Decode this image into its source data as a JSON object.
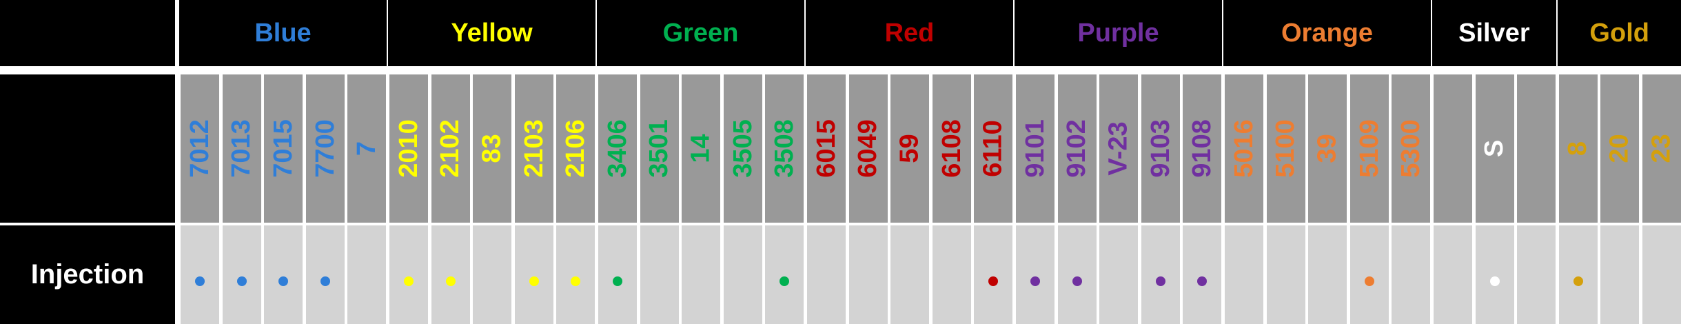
{
  "row_label": "Injection",
  "groups": [
    {
      "name": "Blue",
      "color": "#2f7ed8",
      "columns": [
        {
          "code": "7012",
          "injection": true
        },
        {
          "code": "7013",
          "injection": true
        },
        {
          "code": "7015",
          "injection": true
        },
        {
          "code": "7700",
          "injection": true
        },
        {
          "code": "7",
          "injection": false
        }
      ]
    },
    {
      "name": "Yellow",
      "color": "#ffff00",
      "columns": [
        {
          "code": "2010",
          "injection": true
        },
        {
          "code": "2102",
          "injection": true
        },
        {
          "code": "83",
          "injection": false
        },
        {
          "code": "2103",
          "injection": true
        },
        {
          "code": "2106",
          "injection": true
        }
      ]
    },
    {
      "name": "Green",
      "color": "#00b050",
      "columns": [
        {
          "code": "3406",
          "injection": true
        },
        {
          "code": "3501",
          "injection": false
        },
        {
          "code": "14",
          "injection": false
        },
        {
          "code": "3505",
          "injection": false
        },
        {
          "code": "3508",
          "injection": true
        }
      ]
    },
    {
      "name": "Red",
      "color": "#c00000",
      "columns": [
        {
          "code": "6015",
          "injection": false
        },
        {
          "code": "6049",
          "injection": false
        },
        {
          "code": "59",
          "injection": false
        },
        {
          "code": "6108",
          "injection": false
        },
        {
          "code": "6110",
          "injection": true
        }
      ]
    },
    {
      "name": "Purple",
      "color": "#7030a0",
      "columns": [
        {
          "code": "9101",
          "injection": true
        },
        {
          "code": "9102",
          "injection": true
        },
        {
          "code": "V-23",
          "injection": false
        },
        {
          "code": "9103",
          "injection": true
        },
        {
          "code": "9108",
          "injection": true
        }
      ]
    },
    {
      "name": "Orange",
      "color": "#ed7d31",
      "columns": [
        {
          "code": "5016",
          "injection": false
        },
        {
          "code": "5100",
          "injection": false
        },
        {
          "code": "39",
          "injection": false
        },
        {
          "code": "5109",
          "injection": true
        },
        {
          "code": "5300",
          "injection": false
        }
      ]
    },
    {
      "name": "Silver",
      "color": "#ffffff",
      "columns": [
        {
          "code": null,
          "injection": false
        },
        {
          "code": "S",
          "injection": true
        },
        {
          "code": null,
          "injection": false
        }
      ]
    },
    {
      "name": "Gold",
      "color": "#d4a00c",
      "columns": [
        {
          "code": "8",
          "injection": true
        },
        {
          "code": "20",
          "injection": false
        },
        {
          "code": "23",
          "injection": false
        }
      ]
    }
  ]
}
